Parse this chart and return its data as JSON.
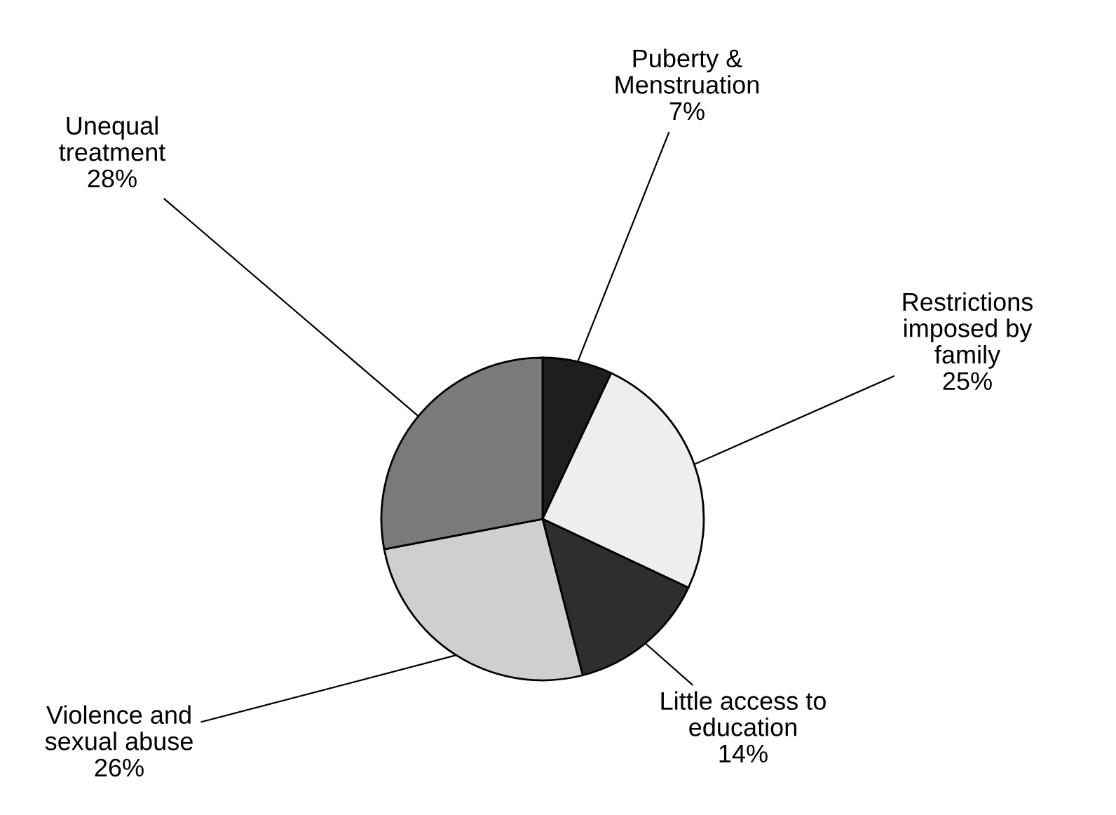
{
  "chart_data": {
    "type": "pie",
    "categories": [
      "Puberty &\nMenstruation",
      "Restrictions\nimposed by\nfamily",
      "Little access to\neducation",
      "Violence and\nsexual abuse",
      "Unequal\ntreatment"
    ],
    "values": [
      7,
      25,
      14,
      26,
      28
    ],
    "value_labels": [
      "7%",
      "25%",
      "14%",
      "26%",
      "28%"
    ],
    "colors": [
      "#1e1e1e",
      "#eeeeee",
      "#2e2e2e",
      "#cfcfcf",
      "#7a7a7a"
    ]
  }
}
